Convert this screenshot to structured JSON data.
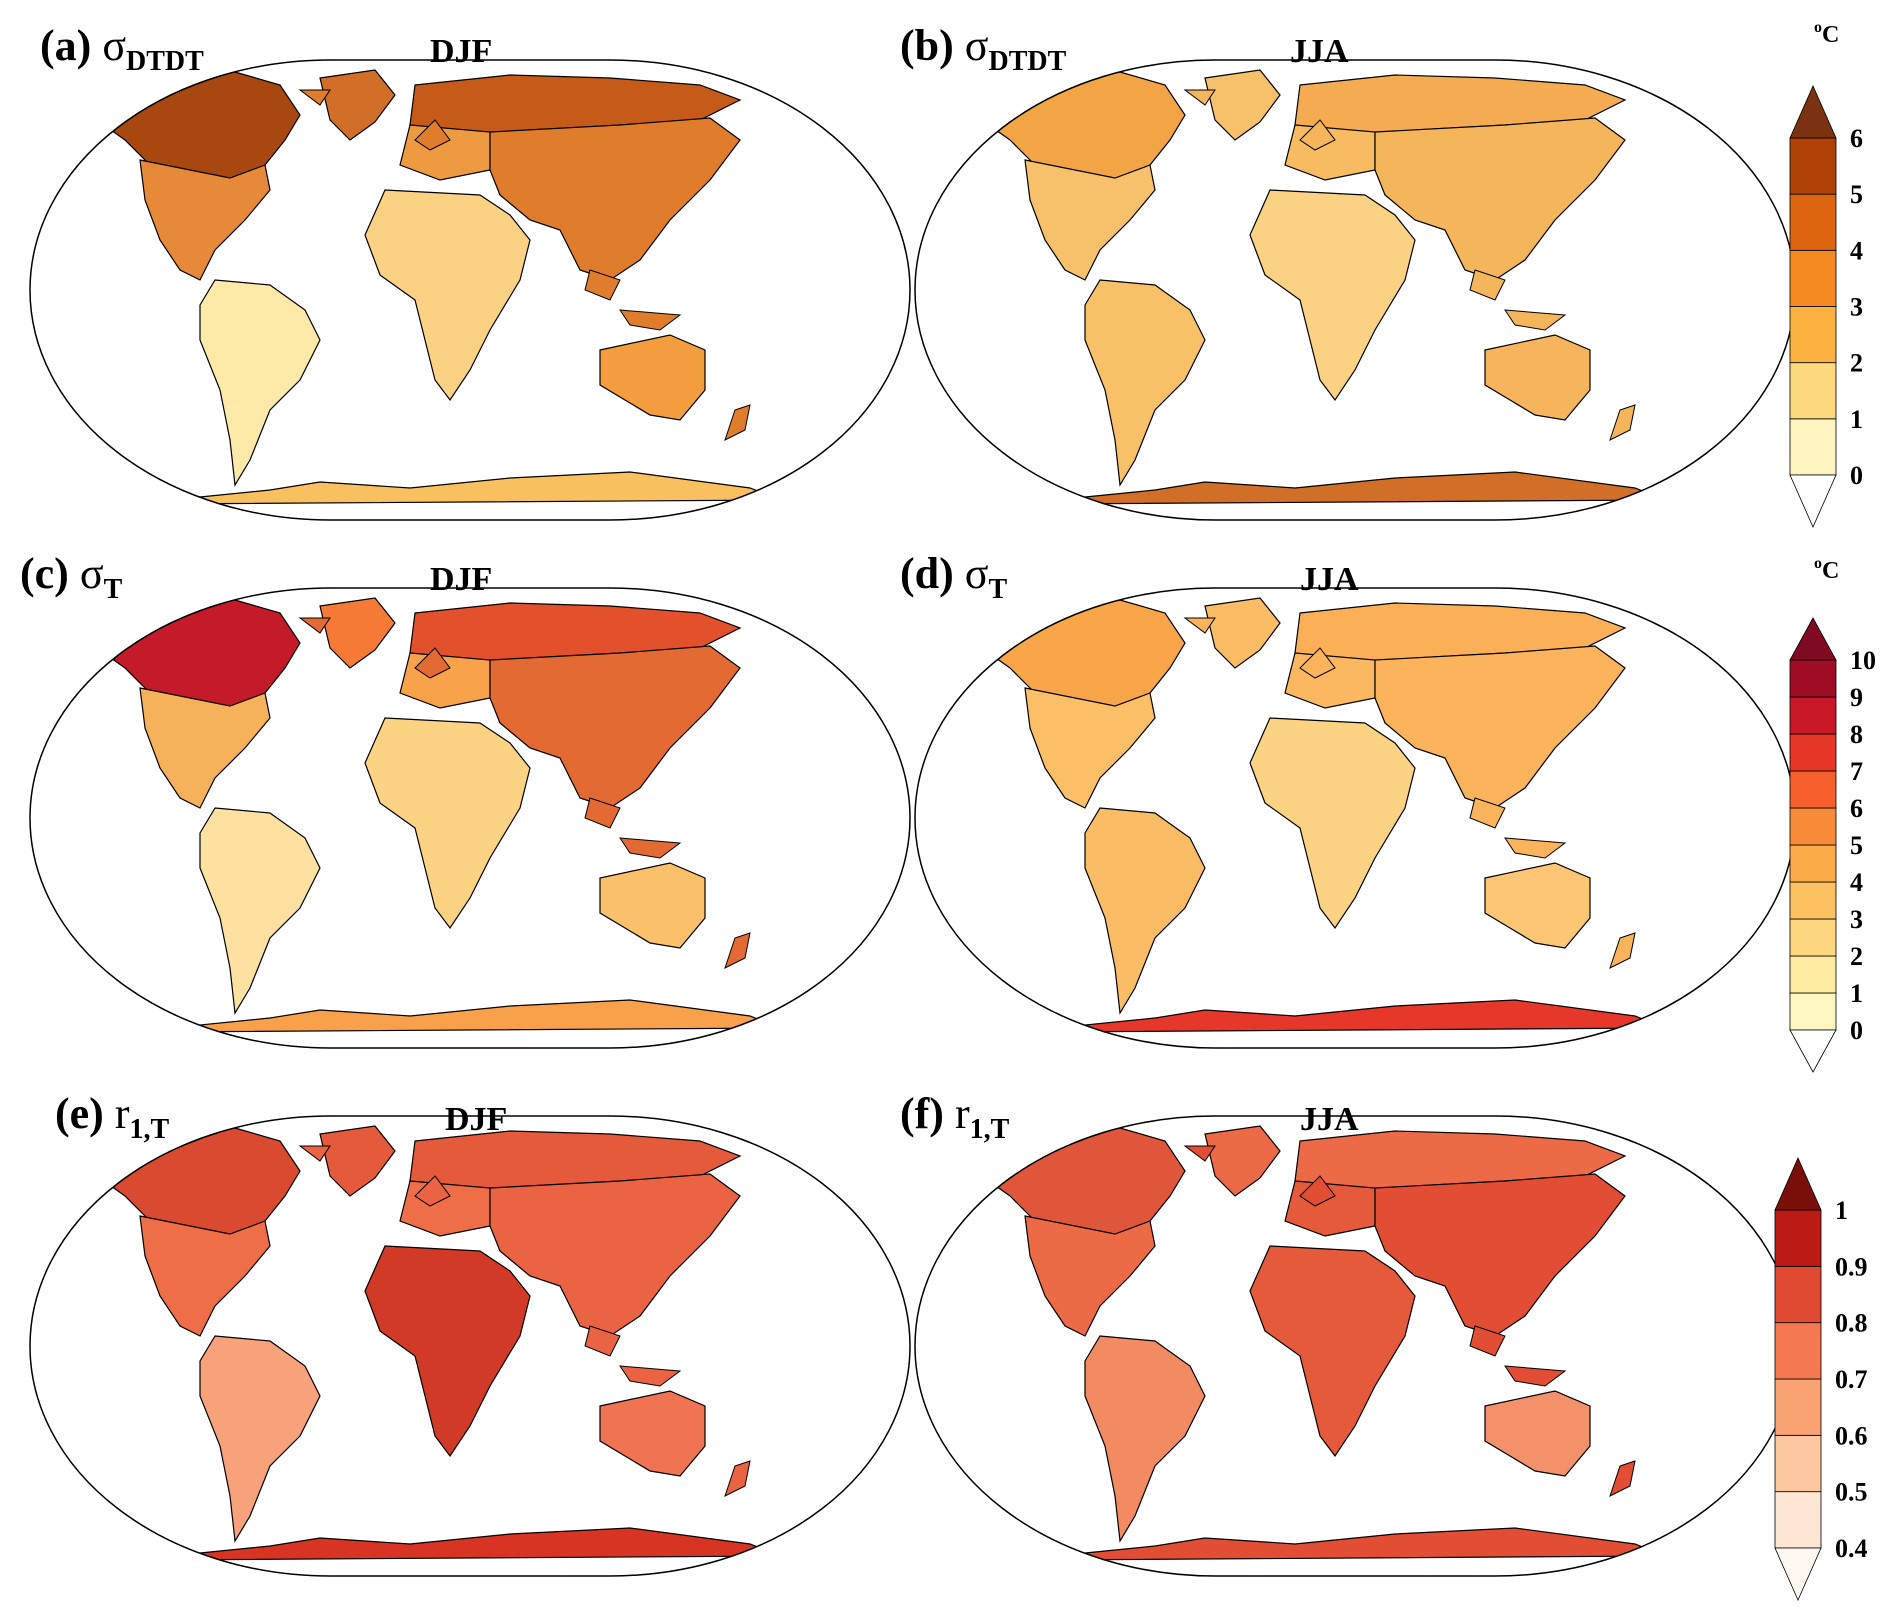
{
  "panels": [
    {
      "id": "a",
      "label": "(a)",
      "var_main": "σ",
      "var_sub": "DTDT",
      "season": "DJF",
      "scale": 0
    },
    {
      "id": "b",
      "label": "(b)",
      "var_main": "σ",
      "var_sub": "DTDT",
      "season": "JJA",
      "scale": 0
    },
    {
      "id": "c",
      "label": "(c)",
      "var_main": "σ",
      "var_sub": "T",
      "season": "DJF",
      "scale": 1
    },
    {
      "id": "d",
      "label": "(d)",
      "var_main": "σ",
      "var_sub": "T",
      "season": "JJA",
      "scale": 1
    },
    {
      "id": "e",
      "label": "(e)",
      "var_main": "r",
      "var_sub": "1,T",
      "season": "DJF",
      "scale": 2
    },
    {
      "id": "f",
      "label": "(f)",
      "var_main": "r",
      "var_sub": "1,T",
      "season": "JJA",
      "scale": 2
    }
  ],
  "colorbars": [
    {
      "id": "dtdt",
      "unit_base": "o",
      "unit_text": "C",
      "ticks": [
        "0",
        "1",
        "2",
        "3",
        "4",
        "5",
        "6"
      ],
      "colors": [
        "#fff5c0",
        "#fdda80",
        "#fbb240",
        "#f48a20",
        "#dd6510",
        "#b04208"
      ],
      "over_color": "#7a3210",
      "under_color": "#ffffff"
    },
    {
      "id": "t",
      "unit_base": "o",
      "unit_text": "C",
      "ticks": [
        "0",
        "1",
        "2",
        "3",
        "4",
        "5",
        "6",
        "7",
        "8",
        "9",
        "10"
      ],
      "colors": [
        "#fff7c2",
        "#feeba0",
        "#fdd780",
        "#fcc160",
        "#fbab48",
        "#f98c38",
        "#f5602c",
        "#e63628",
        "#c81828",
        "#a00c24"
      ],
      "over_color": "#800a22",
      "under_color": "#ffffff"
    },
    {
      "id": "r1",
      "unit_base": "",
      "unit_text": "",
      "ticks": [
        "0.4",
        "0.5",
        "0.6",
        "0.7",
        "0.8",
        "0.9",
        "1"
      ],
      "colors": [
        "#fde7d4",
        "#fdc8a0",
        "#f9a272",
        "#f47850",
        "#e04a30",
        "#bc1a14"
      ],
      "over_color": "#7a0e08",
      "under_color": "#fff8f0"
    }
  ],
  "map_colors": {
    "a": {
      "na_high": "#a8470f",
      "na_low": "#e68a3a",
      "eu_north": "#c65a18",
      "eu_mid": "#ee9a40",
      "asia": "#df7d2c",
      "africa": "#fbd184",
      "sa": "#fde9a8",
      "aus": "#f39d3e",
      "ant": "#f9c060",
      "gr": "#d16e28"
    },
    "b": {
      "na_high": "#f3a545",
      "na_low": "#f7c06a",
      "eu_north": "#f4ab52",
      "eu_mid": "#f7bb62",
      "asia": "#f5b55a",
      "africa": "#fbd184",
      "sa": "#f8c168",
      "aus": "#f6b55c",
      "ant": "#d16e28",
      "gr": "#f7c06a"
    },
    "c": {
      "na_high": "#c41a2a",
      "na_low": "#f5b25a",
      "eu_north": "#e2502c",
      "eu_mid": "#f8a24a",
      "asia": "#e36a32",
      "africa": "#fcd283",
      "sa": "#fde1a0",
      "aus": "#fac06a",
      "ant": "#f9a04a",
      "gr": "#f57a36"
    },
    "d": {
      "na_high": "#f9a54a",
      "na_low": "#fbbf68",
      "eu_north": "#fbb058",
      "eu_mid": "#fbb860",
      "asia": "#fbb35c",
      "africa": "#fcd283",
      "sa": "#fbbc66",
      "aus": "#fcc675",
      "ant": "#e5382a",
      "gr": "#fbbc66"
    },
    "e": {
      "na_high": "#d94a30",
      "na_low": "#ee6e48",
      "eu_north": "#e45a3a",
      "eu_mid": "#ee6e48",
      "asia": "#ea6444",
      "africa": "#d03a26",
      "sa": "#f7a27a",
      "aus": "#f07452",
      "ant": "#d83424",
      "gr": "#e45a3a"
    },
    "f": {
      "na_high": "#e0563a",
      "na_low": "#ec6a46",
      "eu_north": "#ec6a46",
      "eu_mid": "#e45a3a",
      "asia": "#e24e34",
      "africa": "#e45a3a",
      "sa": "#f28a62",
      "aus": "#f3926a",
      "ant": "#e24e34",
      "gr": "#ec6a46"
    }
  }
}
